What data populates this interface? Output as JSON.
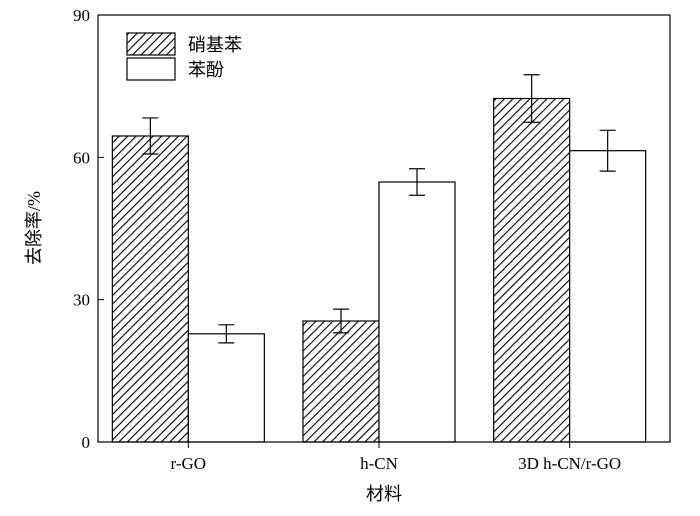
{
  "chart_data": {
    "type": "bar",
    "title": "",
    "xlabel": "材料",
    "ylabel": "去除率/%",
    "ylim": [
      0,
      90
    ],
    "yticks": [
      0,
      30,
      60,
      90
    ],
    "categories": [
      "r-GO",
      "h-CN",
      "3D h-CN/r-GO"
    ],
    "series": [
      {
        "name": "硝基苯",
        "fill": "hatched",
        "values": [
          64.5,
          25.5,
          72.4
        ],
        "errors": [
          3.8,
          2.5,
          5.0
        ]
      },
      {
        "name": "苯酚",
        "fill": "white",
        "values": [
          22.8,
          54.8,
          61.4
        ],
        "errors": [
          1.9,
          2.8,
          4.3
        ]
      }
    ],
    "legend": "top-left",
    "grid": false
  }
}
